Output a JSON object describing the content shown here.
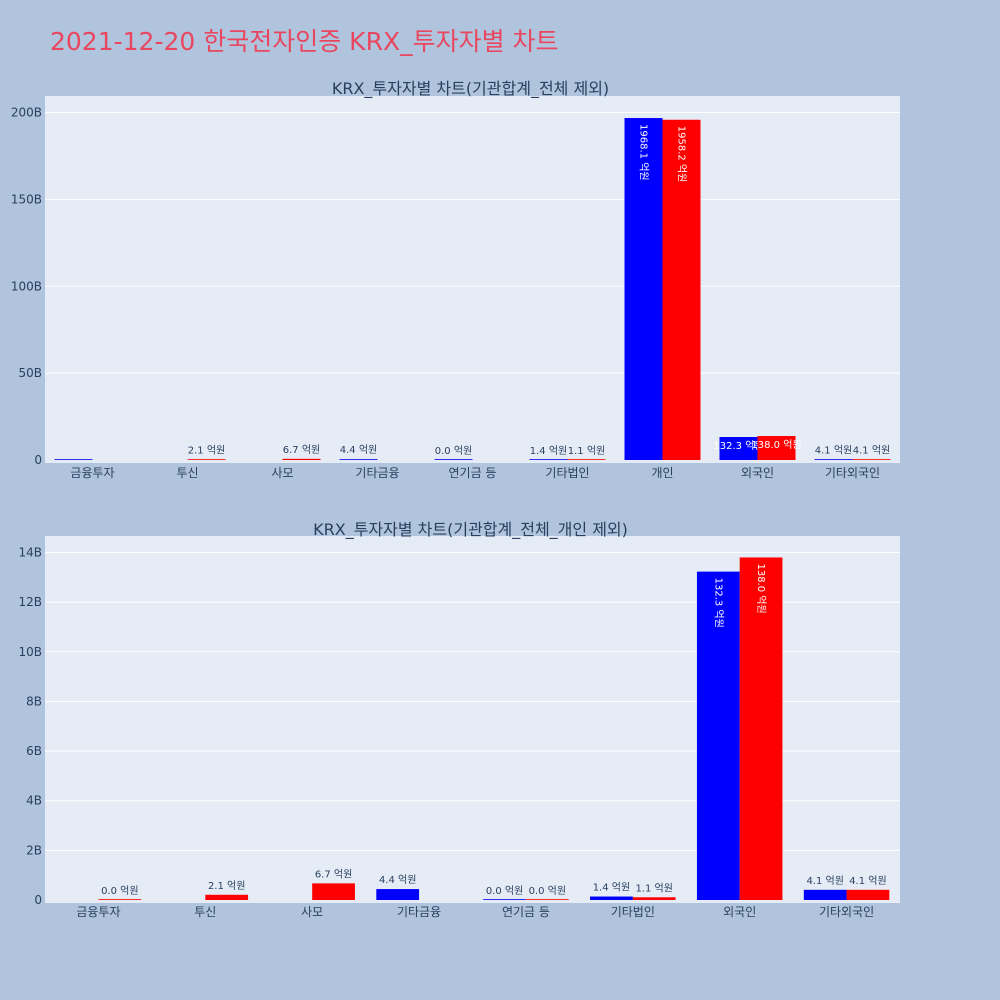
{
  "title": "2021-12-20 한국전자인증 KRX_투자자별 차트",
  "colors": {
    "buy": "#0000ff",
    "sell": "#ff0000",
    "plot_bg": "#e5ecf6",
    "page_bg": "#b0c4de",
    "grid": "#ffffff",
    "title": "#e8475f"
  },
  "chart_data": [
    {
      "type": "bar",
      "title": "KRX_투자자별 차트(기관합계_전체 제외)",
      "categories": [
        "금융투자",
        "투신",
        "사모",
        "기타금융",
        "연기금 등",
        "기타법인",
        "개인",
        "외국인",
        "기타외국인"
      ],
      "y_ticks": [
        "0",
        "50B",
        "100B",
        "150B",
        "200B"
      ],
      "ylim": [
        0,
        200000000000
      ],
      "grid": true,
      "series": [
        {
          "values": [
            0,
            null,
            null,
            440000000,
            0,
            140000000,
            196810000000,
            13230000000,
            410000000
          ],
          "labels": [
            "",
            "",
            "",
            "4.4 억원",
            "0.0 억원",
            "1.4 억원",
            "1968.1 억원",
            "132.3 억원",
            "4.1 억원"
          ]
        },
        {
          "values": [
            null,
            210000000,
            670000000,
            null,
            null,
            110000000,
            195820000000,
            13800000000,
            410000000
          ],
          "labels": [
            "",
            "2.1 억원",
            "6.7 억원",
            "",
            "",
            "1.1 억원",
            "1958.2 억원",
            "138.0 억원",
            "4.1 억원"
          ]
        }
      ]
    },
    {
      "type": "bar",
      "title": "KRX_투자자별 차트(기관합계_전체_개인 제외)",
      "categories": [
        "금융투자",
        "투신",
        "사모",
        "기타금융",
        "연기금 등",
        "기타법인",
        "외국인",
        "기타외국인"
      ],
      "y_ticks": [
        "0",
        "2B",
        "4B",
        "6B",
        "8B",
        "10B",
        "12B",
        "14B"
      ],
      "ylim": [
        0,
        14000000000
      ],
      "grid": true,
      "series": [
        {
          "values": [
            null,
            null,
            null,
            440000000,
            0,
            140000000,
            13230000000,
            410000000
          ],
          "labels": [
            "",
            "",
            "",
            "4.4 억원",
            "0.0 억원",
            "1.4 억원",
            "132.3 억원",
            "4.1 억원"
          ]
        },
        {
          "values": [
            0,
            210000000,
            670000000,
            null,
            0,
            110000000,
            13800000000,
            410000000
          ],
          "labels": [
            "0.0 억원",
            "2.1 억원",
            "6.7 억원",
            "",
            "0.0 억원",
            "1.1 억원",
            "138.0 억원",
            "4.1 억원"
          ]
        }
      ]
    }
  ]
}
